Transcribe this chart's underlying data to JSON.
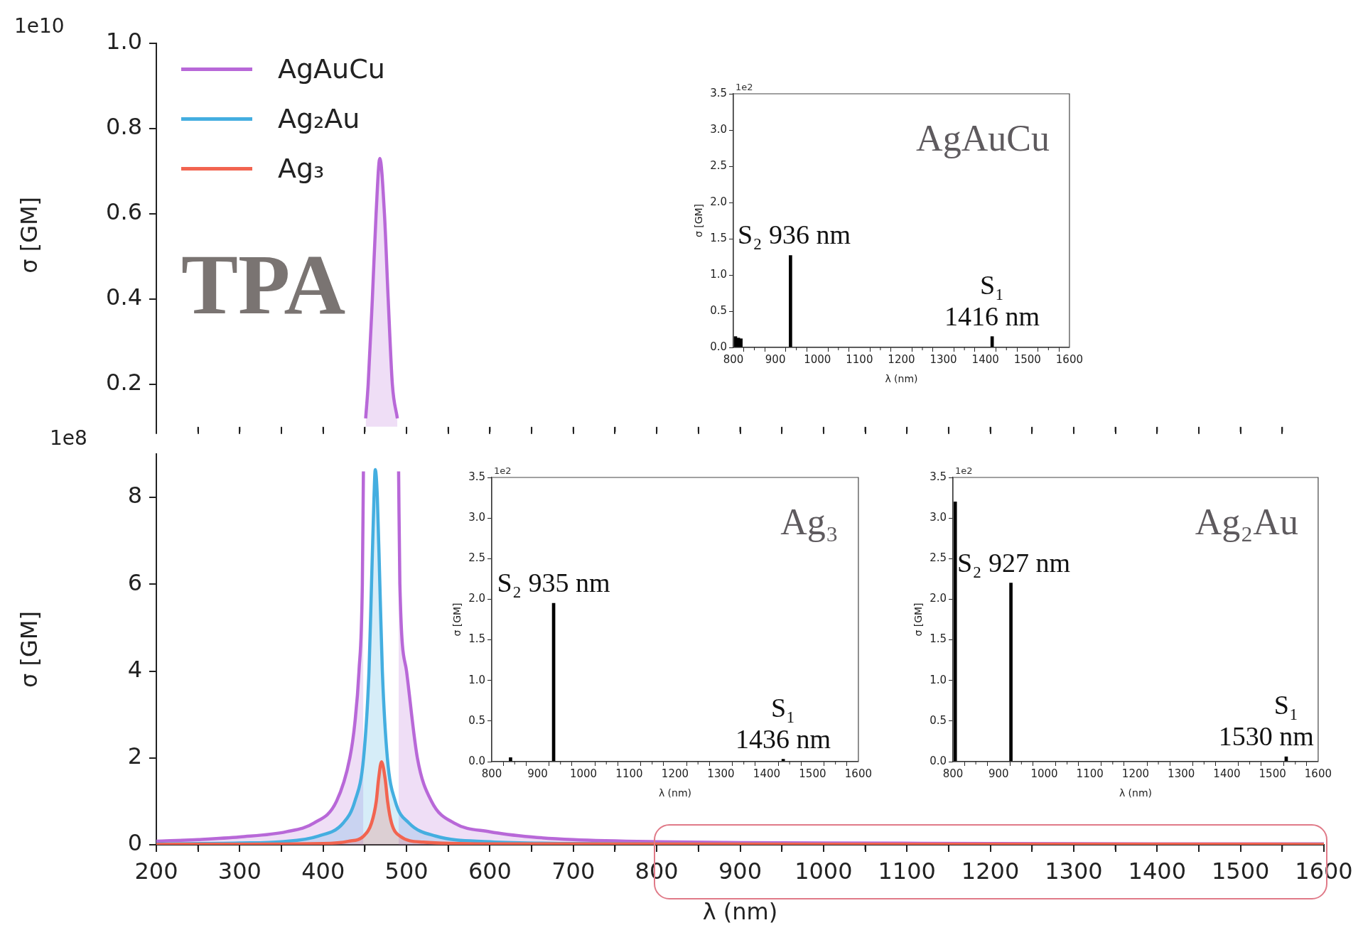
{
  "chart_data": [
    {
      "type": "area",
      "ylabel": "σ [GM]",
      "grid": false,
      "tick_labels": "y",
      "xlim": [
        200,
        1600
      ],
      "xticks": [
        {
          "value": 200,
          "label": null
        },
        {
          "value": 250,
          "label": null
        },
        {
          "value": 300,
          "label": null
        },
        {
          "value": 350,
          "label": null
        },
        {
          "value": 400,
          "label": null
        },
        {
          "value": 450,
          "label": null
        },
        {
          "value": 500,
          "label": null
        },
        {
          "value": 550,
          "label": null
        },
        {
          "value": 600,
          "label": null
        },
        {
          "value": 650,
          "label": null
        },
        {
          "value": 700,
          "label": null
        },
        {
          "value": 750,
          "label": null
        },
        {
          "value": 800,
          "label": null
        },
        {
          "value": 850,
          "label": null
        },
        {
          "value": 900,
          "label": null
        },
        {
          "value": 950,
          "label": null
        },
        {
          "value": 1000,
          "label": null
        },
        {
          "value": 1050,
          "label": null
        },
        {
          "value": 1100,
          "label": null
        },
        {
          "value": 1150,
          "label": null
        },
        {
          "value": 1200,
          "label": null
        },
        {
          "value": 1250,
          "label": null
        },
        {
          "value": 1300,
          "label": null
        },
        {
          "value": 1350,
          "label": null
        },
        {
          "value": 1400,
          "label": null
        },
        {
          "value": 1450,
          "label": null
        },
        {
          "value": 1500,
          "label": null
        },
        {
          "value": 1550,
          "label": null
        }
      ],
      "ylim": [
        0.1,
        1.0
      ],
      "yticks": [
        {
          "value": 0.2,
          "label": "0.2"
        },
        {
          "value": 0.4,
          "label": "0.4"
        },
        {
          "value": 0.6,
          "label": "0.6"
        },
        {
          "value": 0.8,
          "label": "0.8"
        },
        {
          "value": 1.0,
          "label": "1.0"
        }
      ],
      "series": [
        {
          "color": "#b868d8",
          "x": [
            451,
            454,
            459,
            463.5,
            468,
            473.5,
            478,
            483,
            489
          ],
          "values": [
            0.12,
            0.2,
            0.4,
            0.6,
            0.73,
            0.6,
            0.4,
            0.2,
            0.12
          ]
        }
      ],
      "annotations": [
        "1e10",
        "TPA"
      ]
    },
    {
      "type": "area",
      "xlabel": "λ (nm)",
      "ylabel": "σ [GM]",
      "legend": "top left",
      "grid": false,
      "xlim": [
        200,
        1600
      ],
      "xticks": [
        200,
        {
          "value": 250,
          "label": null
        },
        300,
        {
          "value": 350,
          "label": null
        },
        400,
        {
          "value": 450,
          "label": null
        },
        500,
        {
          "value": 550,
          "label": null
        },
        600,
        {
          "value": 650,
          "label": null
        },
        700,
        {
          "value": 750,
          "label": null
        },
        800,
        {
          "value": 850,
          "label": null
        },
        900,
        {
          "value": 950,
          "label": null
        },
        1000,
        {
          "value": 1050,
          "label": null
        },
        1100,
        {
          "value": 1150,
          "label": null
        },
        1200,
        {
          "value": 1250,
          "label": null
        },
        1300,
        {
          "value": 1350,
          "label": null
        },
        1400,
        {
          "value": 1450,
          "label": null
        },
        1500,
        {
          "value": 1550,
          "label": null
        },
        1600
      ],
      "ylim": [
        0,
        9
      ],
      "yticks": [
        0,
        2,
        4,
        6,
        8
      ],
      "series": [
        {
          "name": "AgAuCu",
          "color": "#b868d8",
          "x": [
            200,
            250,
            300,
            356,
            389,
            416,
            432,
            438,
            443,
            447,
            448.3,
            469,
            490.5,
            492,
            500,
            513,
            530,
            557,
            600,
            650,
            700,
            800,
            900,
            1000,
            1200,
            1400,
            1600
          ],
          "values": [
            0.08,
            0.12,
            0.18,
            0.3,
            0.5,
            1.0,
            2.0,
            2.8,
            4.0,
            6.0,
            8.6,
            null,
            8.6,
            6.0,
            4.0,
            2.0,
            1.0,
            0.5,
            0.3,
            0.18,
            0.12,
            0.07,
            0.05,
            0.04,
            0.03,
            0.02,
            0.02
          ]
        },
        {
          "name": "Ag₂Au",
          "color": "#44aee0",
          "x": [
            200,
            300,
            350,
            394,
            424,
            438,
            448.5,
            455,
            458,
            461,
            462.5,
            465,
            468,
            471,
            477,
            486.5,
            503,
            535,
            600,
            700,
            800,
            1600
          ],
          "values": [
            0.02,
            0.04,
            0.07,
            0.2,
            0.5,
            1.0,
            2.0,
            4.0,
            6.0,
            8.0,
            8.64,
            8.0,
            6.0,
            4.0,
            2.0,
            1.0,
            0.5,
            0.2,
            0.07,
            0.03,
            0.02,
            0.01
          ]
        },
        {
          "name": "Ag₃",
          "color": "#f26450",
          "x": [
            200,
            400,
            430,
            448.5,
            458,
            463.7,
            466.4,
            470,
            474.5,
            477.3,
            482,
            492,
            520,
            600,
            1600
          ],
          "values": [
            0.01,
            0.03,
            0.08,
            0.2,
            0.5,
            1.0,
            1.5,
            1.91,
            1.5,
            1.0,
            0.5,
            0.2,
            0.06,
            0.02,
            0.01
          ]
        }
      ],
      "annotations": [
        "1e8"
      ]
    },
    {
      "type": "bar",
      "xlabel": "λ (nm)",
      "ylabel": "σ [GM]",
      "grid": false,
      "xlim": [
        800,
        1600
      ],
      "xticks": [
        800,
        {
          "value": 850,
          "label": null
        },
        900,
        {
          "value": 950,
          "label": null
        },
        1000,
        {
          "value": 1050,
          "label": null
        },
        1100,
        {
          "value": 1150,
          "label": null
        },
        1200,
        {
          "value": 1250,
          "label": null
        },
        1300,
        {
          "value": 1350,
          "label": null
        },
        1400,
        {
          "value": 1450,
          "label": null
        },
        1500,
        {
          "value": 1550,
          "label": null
        },
        1600
      ],
      "ylim": [
        0,
        3.5
      ],
      "yticks": [
        {
          "value": 0,
          "label": "0.0"
        },
        {
          "value": 0.5,
          "label": "0.5"
        },
        {
          "value": 1,
          "label": "1.0"
        },
        {
          "value": 1.5,
          "label": "1.5"
        },
        {
          "value": 2,
          "label": "2.0"
        },
        {
          "value": 2.5,
          "label": "2.5"
        },
        {
          "value": 3,
          "label": "3.0"
        },
        {
          "value": 3.5,
          "label": "3.5"
        }
      ],
      "x": [
        805,
        812,
        818,
        936,
        1416
      ],
      "values": [
        0.15,
        0.13,
        0.12,
        1.27,
        0.15
      ],
      "color": "#000000",
      "annotations": [
        "1e2",
        "AgAuCu",
        {
          "text": "S₂ 936 nm",
          "x": 936,
          "y": 1.27
        },
        {
          "text": "S₁",
          "x": 1416,
          "y": 0.15
        },
        {
          "text": "1416 nm",
          "x": 1416,
          "y": 0.15
        }
      ]
    },
    {
      "type": "bar",
      "xlabel": "λ (nm)",
      "ylabel": "σ [GM]",
      "grid": false,
      "xlim": [
        800,
        1600
      ],
      "xticks": [
        800,
        {
          "value": 850,
          "label": null
        },
        900,
        {
          "value": 950,
          "label": null
        },
        1000,
        {
          "value": 1050,
          "label": null
        },
        1100,
        {
          "value": 1150,
          "label": null
        },
        1200,
        {
          "value": 1250,
          "label": null
        },
        1300,
        {
          "value": 1350,
          "label": null
        },
        1400,
        {
          "value": 1450,
          "label": null
        },
        1500,
        {
          "value": 1550,
          "label": null
        },
        1600
      ],
      "ylim": [
        0,
        3.5
      ],
      "yticks": [
        {
          "value": 0,
          "label": "0.0"
        },
        {
          "value": 0.5,
          "label": "0.5"
        },
        {
          "value": 1,
          "label": "1.0"
        },
        {
          "value": 1.5,
          "label": "1.5"
        },
        {
          "value": 2,
          "label": "2.0"
        },
        {
          "value": 2.5,
          "label": "2.5"
        },
        {
          "value": 3,
          "label": "3.0"
        },
        {
          "value": 3.5,
          "label": "3.5"
        }
      ],
      "x": [
        841,
        935,
        1436
      ],
      "values": [
        0.05,
        1.95,
        0.03
      ],
      "color": "#000000",
      "annotations": [
        "1e2",
        "Ag₃",
        {
          "text": "S₂ 935 nm",
          "x": 935,
          "y": 1.95
        },
        {
          "text": "S₁",
          "x": 1436,
          "y": 0.03
        },
        {
          "text": "1436 nm",
          "x": 1436,
          "y": 0.03
        }
      ]
    },
    {
      "type": "bar",
      "xlabel": "λ (nm)",
      "ylabel": "σ [GM]",
      "grid": false,
      "xlim": [
        800,
        1600
      ],
      "xticks": [
        800,
        {
          "value": 850,
          "label": null
        },
        900,
        {
          "value": 950,
          "label": null
        },
        1000,
        {
          "value": 1050,
          "label": null
        },
        1100,
        {
          "value": 1150,
          "label": null
        },
        1200,
        {
          "value": 1250,
          "label": null
        },
        1300,
        {
          "value": 1350,
          "label": null
        },
        1400,
        {
          "value": 1450,
          "label": null
        },
        1500,
        {
          "value": 1550,
          "label": null
        },
        1600
      ],
      "ylim": [
        0,
        3.5
      ],
      "yticks": [
        {
          "value": 0,
          "label": "0.0"
        },
        {
          "value": 0.5,
          "label": "0.5"
        },
        {
          "value": 1,
          "label": "1.0"
        },
        {
          "value": 1.5,
          "label": "1.5"
        },
        {
          "value": 2,
          "label": "2.0"
        },
        {
          "value": 2.5,
          "label": "2.5"
        },
        {
          "value": 3,
          "label": "3.0"
        },
        {
          "value": 3.5,
          "label": "3.5"
        }
      ],
      "x": [
        805,
        927,
        1530
      ],
      "values": [
        3.2,
        2.2,
        0.06
      ],
      "color": "#000000",
      "annotations": [
        "1e2",
        "Ag₂Au",
        {
          "text": "S₂ 927 nm",
          "x": 927,
          "y": 2.2
        },
        {
          "text": "S₁",
          "x": 1530,
          "y": 0.06
        },
        {
          "text": "1530 nm",
          "x": 1530,
          "y": 0.06
        }
      ]
    }
  ]
}
